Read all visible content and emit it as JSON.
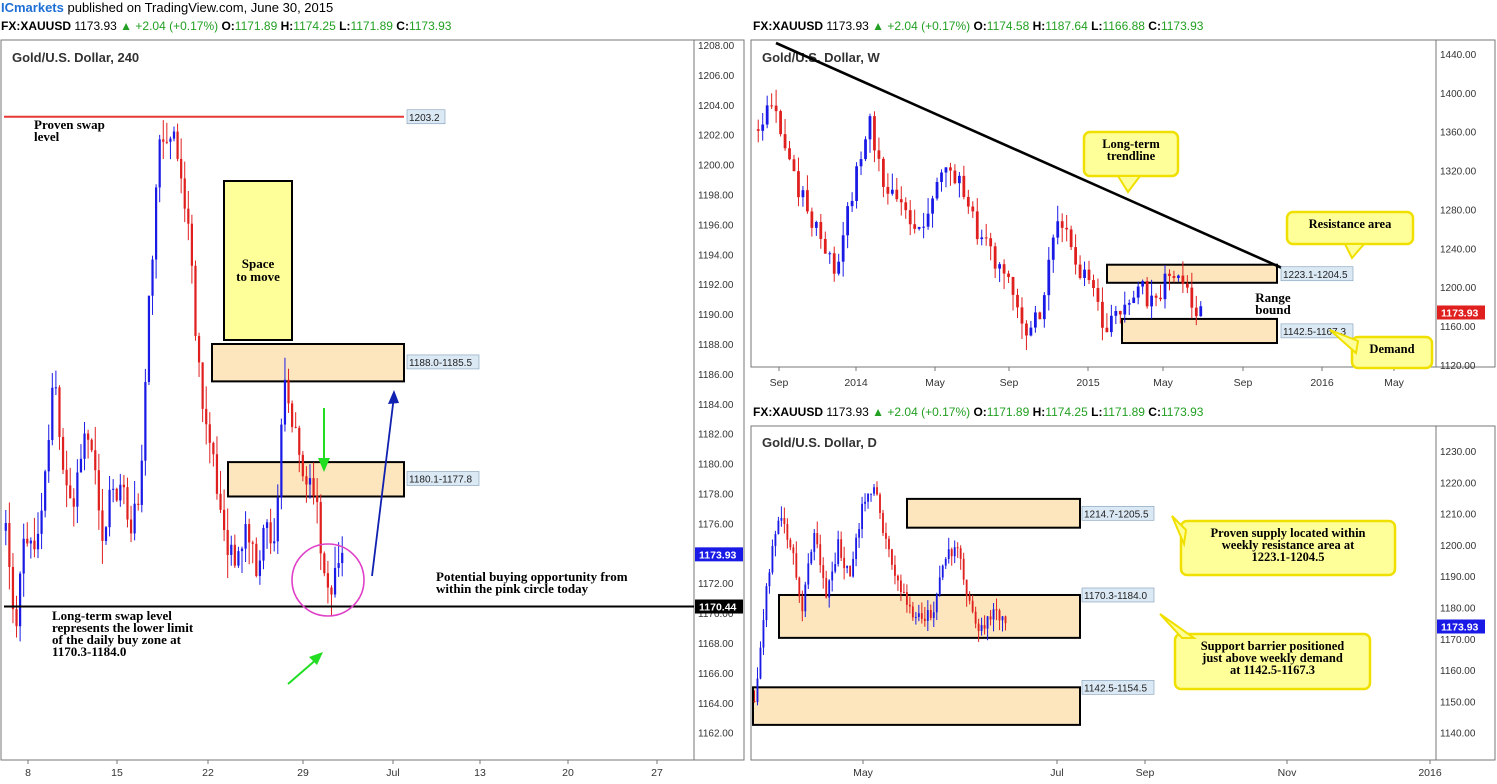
{
  "header": {
    "brand": "ICmarkets",
    "text": " published on TradingView.com, June 30, 2015"
  },
  "colors": {
    "bull": "#1a1ae6",
    "bear": "#e01f1f",
    "zone_fill": "#fde6bd",
    "note_fill": "#ffff9a",
    "note_border": "#f0e000",
    "swap_red": "#e53935",
    "pink": "#e040c8",
    "green_arrow": "#22dd22",
    "blue_arrow": "#1020b0"
  },
  "panels": [
    {
      "id": "h4",
      "quote": {
        "sym": "FX:XAUUSD",
        "last": "1173.93",
        "chg": "+2.04 (+0.17%)",
        "o": "1171.89",
        "h": "1174.25",
        "l": "1171.89",
        "c": "1173.93"
      },
      "title": "Gold/U.S. Dollar, 240",
      "y_ticks": [
        "1162.00",
        "1164.00",
        "1166.00",
        "1168.00",
        "1170.00",
        "1172.00",
        "1174.00",
        "1176.00",
        "1178.00",
        "1180.00",
        "1182.00",
        "1184.00",
        "1186.00",
        "1188.00",
        "1190.00",
        "1192.00",
        "1194.00",
        "1196.00",
        "1198.00",
        "1200.00",
        "1202.00",
        "1204.00",
        "1206.00",
        "1208.00"
      ],
      "x_ticks": [
        "8",
        "15",
        "22",
        "29",
        "Jul",
        "13",
        "20",
        "27"
      ],
      "price_tag": "1173.93",
      "line_tag": "1170.44",
      "labels": {
        "swap": "1203.2",
        "zone1": "1188.0-1185.5",
        "zone2": "1180.1-1177.8"
      },
      "notes": {
        "swap_a": "Proven swap",
        "swap_b": "level",
        "space_a": "Space",
        "space_b": "to move",
        "buy_a": "Potential buying opportunity from",
        "buy_b": "within the pink circle today",
        "lt_a": "Long-term swap level",
        "lt_b": "represents the lower limit",
        "lt_c": "of the daily buy zone at",
        "lt_d": "1170.3-1184.0"
      }
    },
    {
      "id": "weekly",
      "quote": {
        "sym": "FX:XAUUSD",
        "last": "1173.93",
        "chg": "+2.04 (+0.17%)",
        "o": "1174.58",
        "h": "1187.64",
        "l": "1166.88",
        "c": "1173.93"
      },
      "title": "Gold/U.S. Dollar, W",
      "y_ticks": [
        "1120.00",
        "1160.00",
        "1200.00",
        "1240.00",
        "1280.00",
        "1320.00",
        "1360.00",
        "1400.00",
        "1440.00"
      ],
      "x_ticks": [
        "Sep",
        "2014",
        "May",
        "Sep",
        "2015",
        "May",
        "Sep",
        "2016",
        "May"
      ],
      "price_tag": "1173.93",
      "labels": {
        "res": "1223.1-1204.5",
        "dem": "1142.5-1167.3"
      },
      "notes": {
        "trend_a": "Long-term",
        "trend_b": "trendline",
        "res": "Resistance area",
        "range_a": "Range",
        "range_b": "bound",
        "demand": "Demand"
      }
    },
    {
      "id": "daily",
      "quote": {
        "sym": "FX:XAUUSD",
        "last": "1173.93",
        "chg": "+2.04 (+0.17%)",
        "o": "1171.89",
        "h": "1174.25",
        "l": "1171.89",
        "c": "1173.93"
      },
      "title": "Gold/U.S. Dollar, D",
      "y_ticks": [
        "1140.00",
        "1150.00",
        "1160.00",
        "1170.00",
        "1180.00",
        "1190.00",
        "1200.00",
        "1210.00",
        "1220.00",
        "1230.00"
      ],
      "x_ticks": [
        "May",
        "Jul",
        "Sep",
        "Nov",
        "2016"
      ],
      "price_tag": "1173.93",
      "labels": {
        "sup": "1214.7-1205.5",
        "mid": "1170.3-1184.0",
        "low": "1142.5-1154.5"
      },
      "notes": {
        "sup_a": "Proven supply located within",
        "sup_b": "weekly resistance area at",
        "sup_c": "1223.1-1204.5",
        "bar_a": "Support barrier positioned",
        "bar_b": "just above  weekly demand",
        "bar_c": "at 1142.5-1167.3"
      }
    }
  ]
}
